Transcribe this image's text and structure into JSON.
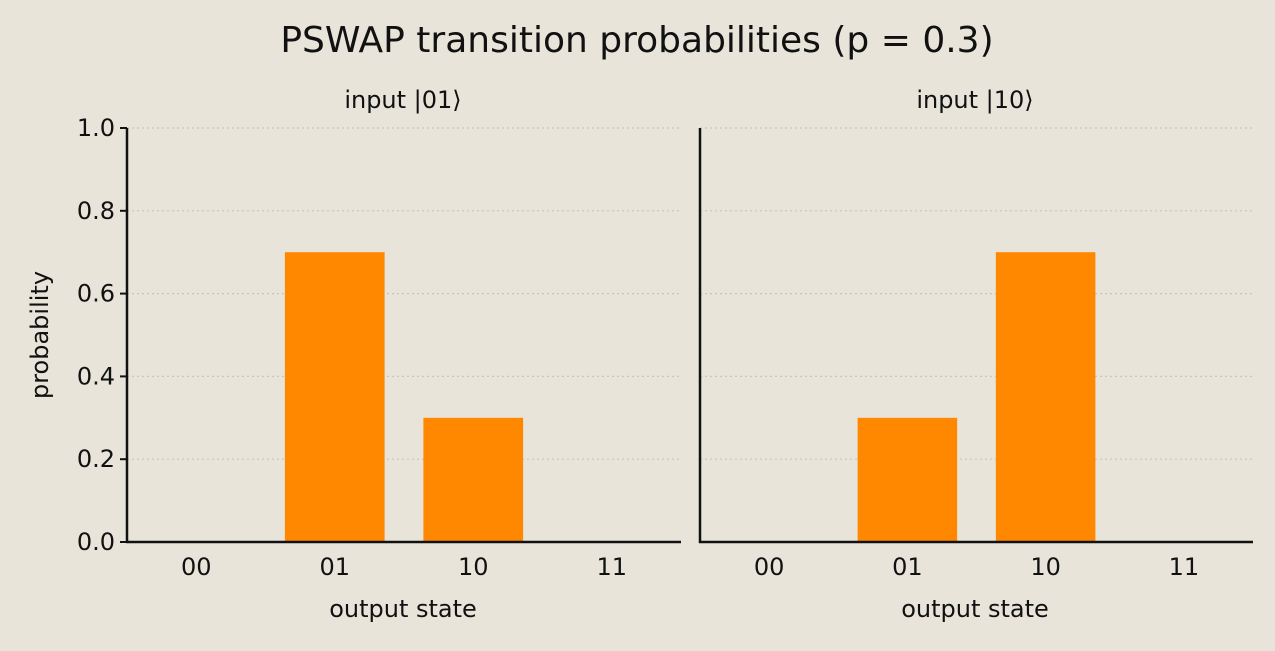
{
  "figure": {
    "title": "PSWAP transition probabilities (p = 0.3)",
    "background": "#e8e4da",
    "bar_color": "#ff8800",
    "grid_color": "#c8c4b8"
  },
  "chart_data": [
    {
      "type": "bar",
      "title": "input |01⟩",
      "categories": [
        "00",
        "01",
        "10",
        "11"
      ],
      "values": [
        0.0,
        0.7,
        0.3,
        0.0
      ],
      "xlabel": "output state",
      "ylabel": "probability",
      "ylim": [
        0,
        1.0
      ],
      "yticks": [
        "0.0",
        "0.2",
        "0.4",
        "0.6",
        "0.8",
        "1.0"
      ],
      "grid": "horizontal dotted",
      "legend": "none"
    },
    {
      "type": "bar",
      "title": "input |10⟩",
      "categories": [
        "00",
        "01",
        "10",
        "11"
      ],
      "values": [
        0.0,
        0.3,
        0.7,
        0.0
      ],
      "xlabel": "output state",
      "ylabel": "",
      "ylim": [
        0,
        1.0
      ],
      "yticks": [],
      "grid": "horizontal dotted",
      "legend": "none"
    }
  ]
}
